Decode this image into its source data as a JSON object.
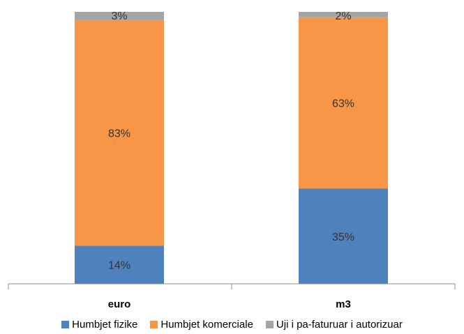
{
  "chart_data": {
    "type": "bar",
    "stacked": true,
    "categories": [
      "euro",
      "m3"
    ],
    "series": [
      {
        "name": "Humbjet fizike",
        "values": [
          14,
          35
        ],
        "labels": [
          "14%",
          "35%"
        ],
        "color": "#4f81bd"
      },
      {
        "name": "Humbjet komerciale",
        "values": [
          83,
          63
        ],
        "labels": [
          "83%",
          "63%"
        ],
        "color": "#f79646"
      },
      {
        "name": "Uji i pa-faturuar i autorizuar",
        "values": [
          3,
          2
        ],
        "labels": [
          "3%",
          "2%"
        ],
        "color": "#a5a5a5"
      }
    ],
    "ylim": [
      0,
      100
    ],
    "grid": false,
    "legend_position": "bottom"
  }
}
